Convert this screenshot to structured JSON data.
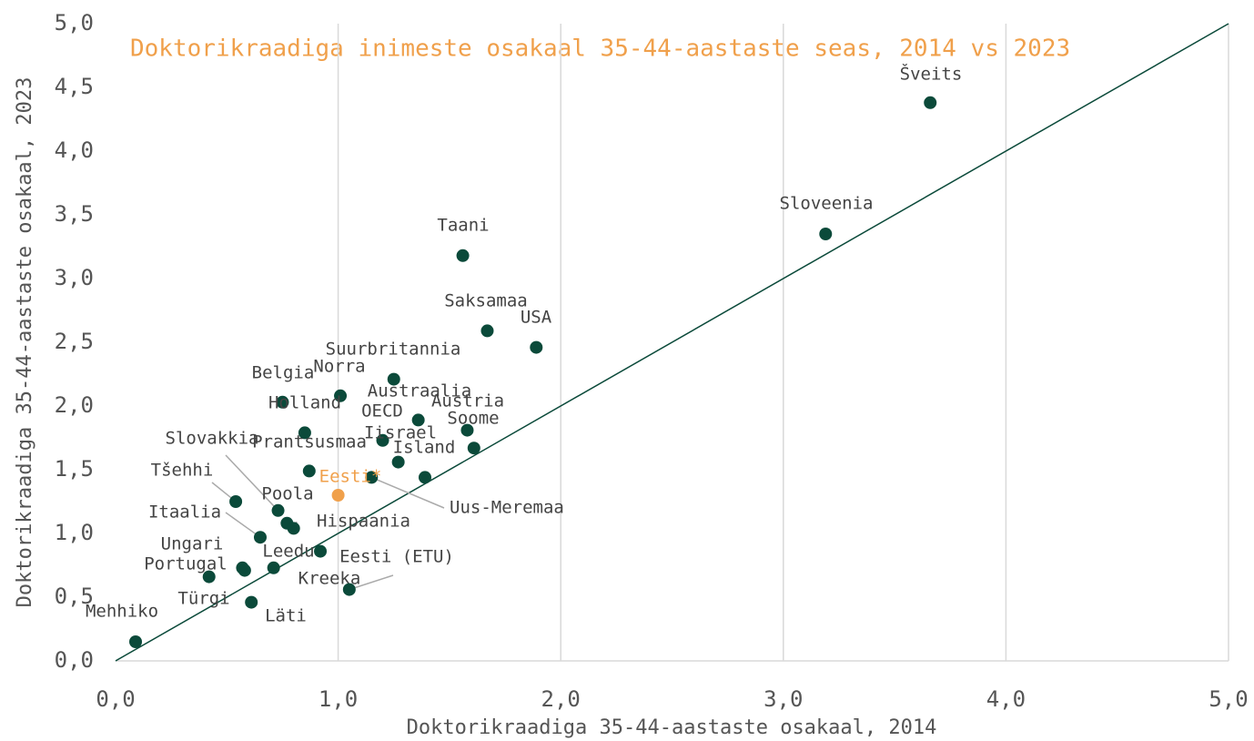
{
  "chart_data": {
    "type": "scatter",
    "title": "Doktorikraadiga inimeste osakaal 35-44-aastaste seas, 2014 vs 2023",
    "x_label": "Doktorikraadiga 35-44-aastaste osakaal, 2014",
    "y_label": "Doktorikraadiga 35-44-aastaste osakaal, 2023",
    "labels": [
      "Šveits",
      "Sloveenia",
      "Taani",
      "Saksamaa",
      "USA",
      "Suurbritannia",
      "Norra",
      "Belgia",
      "Holland",
      "Austraalia",
      "Austria",
      "Soome",
      "OECD",
      "Iisrael",
      "Island",
      "Prantsusmaa",
      "Uus-Meremaa",
      "Eesti*",
      "Slovakkia",
      "Tšehhi",
      "Poola",
      "Hispaania",
      "Itaalia",
      "Kreeka",
      "Leedu",
      "Ungari",
      "Türgi",
      "Portugal",
      "Läti",
      "Eesti (ETU)",
      "Mehhiko"
    ],
    "x": [
      3.66,
      3.19,
      1.56,
      1.67,
      1.89,
      1.25,
      1.01,
      0.75,
      0.85,
      1.36,
      1.58,
      1.61,
      1.2,
      1.27,
      1.39,
      0.87,
      1.15,
      1.0,
      0.73,
      0.54,
      0.77,
      0.8,
      0.65,
      0.92,
      0.71,
      0.57,
      0.58,
      0.42,
      0.61,
      1.05,
      0.09
    ],
    "values": [
      4.38,
      3.35,
      3.18,
      2.59,
      2.46,
      2.21,
      2.08,
      2.03,
      1.79,
      1.89,
      1.81,
      1.67,
      1.73,
      1.56,
      1.44,
      1.49,
      1.44,
      1.3,
      1.18,
      1.25,
      1.08,
      1.04,
      0.97,
      0.86,
      0.73,
      0.73,
      0.71,
      0.66,
      0.46,
      0.56,
      0.15
    ],
    "colors": [
      "#0b4a3a",
      "#0b4a3a",
      "#0b4a3a",
      "#0b4a3a",
      "#0b4a3a",
      "#0b4a3a",
      "#0b4a3a",
      "#0b4a3a",
      "#0b4a3a",
      "#0b4a3a",
      "#0b4a3a",
      "#0b4a3a",
      "#0b4a3a",
      "#0b4a3a",
      "#0b4a3a",
      "#0b4a3a",
      "#0b4a3a",
      "#f0a04b",
      "#0b4a3a",
      "#0b4a3a",
      "#0b4a3a",
      "#0b4a3a",
      "#0b4a3a",
      "#0b4a3a",
      "#0b4a3a",
      "#0b4a3a",
      "#0b4a3a",
      "#0b4a3a",
      "#0b4a3a",
      "#0b4a3a",
      "#0b4a3a"
    ],
    "title_color": "#f0a04b",
    "diagonal_color": "#0b4a3a",
    "xlim": [
      0,
      5
    ],
    "ylim": [
      0,
      5
    ],
    "xticks": [
      {
        "value": 0,
        "label": "0,0"
      },
      {
        "value": 1,
        "label": "1,0"
      },
      {
        "value": 2,
        "label": "2,0"
      },
      {
        "value": 3,
        "label": "3,0"
      },
      {
        "value": 4,
        "label": "4,0"
      },
      {
        "value": 5,
        "label": "5,0"
      }
    ],
    "yticks": [
      {
        "value": 0,
        "label": "0,0"
      },
      {
        "value": 0.5,
        "label": "0,5"
      },
      {
        "value": 1,
        "label": "1,0"
      },
      {
        "value": 1.5,
        "label": "1,5"
      },
      {
        "value": 2,
        "label": "2,0"
      },
      {
        "value": 2.5,
        "label": "2,5"
      },
      {
        "value": 3,
        "label": "3,0"
      },
      {
        "value": 3.5,
        "label": "3,5"
      },
      {
        "value": 4,
        "label": "4,0"
      },
      {
        "value": 4.5,
        "label": "4,5"
      },
      {
        "value": 5,
        "label": "5,0"
      }
    ],
    "grid": "x"
  }
}
